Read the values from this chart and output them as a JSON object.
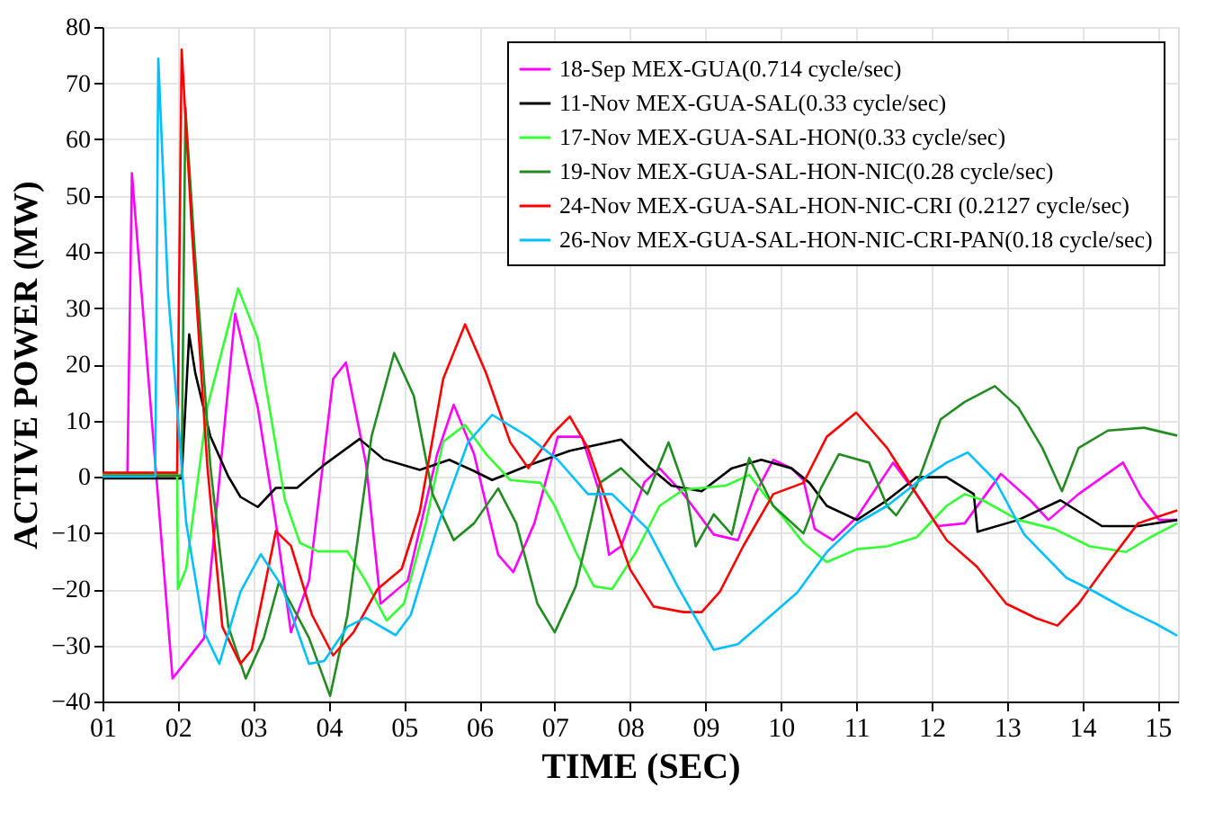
{
  "chart_data": {
    "type": "line",
    "xlabel": "TIME (SEC)",
    "ylabel": "ACTIVE POWER (MW)",
    "xlim": [
      1,
      15.27
    ],
    "ylim": [
      -40,
      80
    ],
    "xticks": [
      {
        "value": 1,
        "label": "01"
      },
      {
        "value": 2,
        "label": "02"
      },
      {
        "value": 3,
        "label": "03"
      },
      {
        "value": 4,
        "label": "04"
      },
      {
        "value": 5,
        "label": "05"
      },
      {
        "value": 6,
        "label": "06"
      },
      {
        "value": 7,
        "label": "07"
      },
      {
        "value": 8,
        "label": "08"
      },
      {
        "value": 9,
        "label": "09"
      },
      {
        "value": 10,
        "label": "10"
      },
      {
        "value": 11,
        "label": "11"
      },
      {
        "value": 12,
        "label": "12"
      },
      {
        "value": 13,
        "label": "13"
      },
      {
        "value": 14,
        "label": "14"
      },
      {
        "value": 15,
        "label": "15"
      }
    ],
    "yticks": [
      -40,
      -30,
      -20,
      -10,
      0,
      10,
      20,
      30,
      40,
      50,
      60,
      70,
      80
    ],
    "grid": true,
    "legend": "top right",
    "marker": "none",
    "line_style": "solid",
    "series": [
      {
        "name": "18-Sep MEX-GUA(0.714 cycle/sec)",
        "color": "#ff00ff",
        "x": [
          1,
          1.33,
          1.39,
          1.93,
          2.35,
          2.76,
          3.06,
          3.3,
          3.5,
          3.74,
          4.06,
          4.23,
          4.5,
          4.69,
          5.05,
          5.44,
          5.66,
          5.93,
          6.25,
          6.45,
          6.73,
          7.04,
          7.36,
          7.6,
          7.72,
          7.88,
          8.19,
          8.39,
          8.71,
          9.11,
          9.43,
          9.66,
          9.9,
          10.14,
          10.3,
          10.45,
          10.69,
          11.01,
          11.49,
          11.8,
          12.08,
          12.44,
          12.92,
          13.31,
          13.55,
          13.95,
          14.54,
          14.78,
          15.02,
          15.26
        ],
        "values": [
          0.5,
          0.5,
          54,
          -35.9,
          -28.7,
          29,
          12.3,
          -8.2,
          -27.7,
          -18.5,
          17.4,
          20.3,
          2,
          -22.6,
          -18.5,
          4,
          12.8,
          4,
          -13.9,
          -17,
          -8.3,
          7.1,
          7.1,
          -3.1,
          -13.9,
          -12.4,
          -1,
          1.5,
          -3.1,
          -10.3,
          -11.3,
          -3.1,
          3,
          1.5,
          -0.6,
          -9.3,
          -11.3,
          -7.2,
          2.5,
          -3.1,
          -8.8,
          -8.3,
          0.5,
          -4.2,
          -7.7,
          -3.1,
          2.5,
          -3.6,
          -7.7,
          -7.7
        ]
      },
      {
        "name": "11-Nov MEX-GUA-SAL(0.33 cycle/sec)",
        "color": "#000000",
        "x": [
          1,
          2.05,
          2.15,
          2.23,
          2.43,
          2.67,
          2.83,
          3.06,
          3.3,
          3.58,
          3.94,
          4.41,
          4.73,
          5.21,
          5.6,
          5.93,
          6.17,
          6.65,
          7.2,
          7.88,
          8.23,
          8.55,
          8.95,
          9.35,
          9.74,
          10.14,
          10.38,
          10.61,
          11.01,
          11.41,
          11.8,
          12.2,
          12.56,
          12.61,
          13.15,
          13.71,
          14.26,
          14.74,
          15.26
        ],
        "values": [
          -0.3,
          -0.3,
          25.3,
          18.5,
          7.2,
          0,
          -3.6,
          -5.4,
          -2,
          -2,
          2.1,
          6.7,
          3.1,
          1.2,
          3,
          1,
          -0.6,
          2,
          4.6,
          6.6,
          2,
          -1.6,
          -2.6,
          1.5,
          3,
          1.5,
          -1.1,
          -5.2,
          -7.7,
          -4.2,
          -0.1,
          -0.1,
          -3.1,
          -9.8,
          -7.7,
          -4.2,
          -8.8,
          -8.8,
          -7.7
        ]
      },
      {
        "name": "17-Nov MEX-GUA-SAL-HON(0.33 cycle/sec)",
        "color": "#33ff33",
        "x": [
          1,
          1.99,
          2.0,
          2.11,
          2.39,
          2.8,
          3.06,
          3.42,
          3.62,
          3.86,
          4.25,
          4.49,
          4.77,
          5.0,
          5.29,
          5.52,
          5.81,
          6.09,
          6.41,
          6.81,
          7.0,
          7.28,
          7.52,
          7.76,
          8.08,
          8.39,
          8.71,
          9.27,
          9.58,
          9.9,
          10.06,
          10.3,
          10.61,
          11.01,
          11.41,
          11.8,
          12.2,
          12.44,
          12.68,
          13.15,
          13.63,
          14.1,
          14.58,
          14.9,
          15.26
        ],
        "values": [
          0.5,
          0.5,
          -20,
          -16.4,
          12.3,
          33.5,
          24.6,
          -4.1,
          -11.8,
          -13.3,
          -13.3,
          -18.5,
          -25.6,
          -22.6,
          -8.2,
          6.2,
          9.2,
          4,
          -0.6,
          -1.1,
          -5.2,
          -13.4,
          -19.5,
          -20,
          -13.4,
          -5.2,
          -2.3,
          -1.6,
          0.3,
          -5.2,
          -7.7,
          -11.8,
          -15.2,
          -12.9,
          -12.4,
          -10.8,
          -5.2,
          -3.1,
          -4.2,
          -7.7,
          -9.3,
          -12.4,
          -13.4,
          -10.8,
          -8.3
        ]
      },
      {
        "name": "19-Nov MEX-GUA-SAL-HON-NIC(0.28 cycle/sec)",
        "color": "#228b22",
        "x": [
          1,
          2.05,
          2.1,
          2.23,
          2.43,
          2.67,
          2.9,
          3.14,
          3.34,
          3.5,
          3.74,
          4.02,
          4.25,
          4.57,
          4.87,
          5.13,
          5.38,
          5.66,
          5.93,
          6.25,
          6.49,
          6.77,
          7.0,
          7.28,
          7.6,
          7.88,
          8.23,
          8.51,
          8.75,
          8.87,
          9.11,
          9.35,
          9.58,
          9.9,
          10.3,
          10.53,
          10.77,
          11.17,
          11.41,
          11.53,
          11.8,
          12.12,
          12.44,
          12.84,
          13.15,
          13.47,
          13.73,
          13.95,
          14.34,
          14.82,
          15.26
        ],
        "values": [
          0.2,
          0.2,
          65.6,
          39,
          2,
          -26.7,
          -35.9,
          -28.7,
          -18.8,
          -22.6,
          -28.7,
          -39,
          -24.6,
          7.2,
          22,
          14.4,
          -3.1,
          -11.3,
          -8.3,
          -2.1,
          -8.3,
          -22.6,
          -27.7,
          -19.5,
          -1.1,
          1.5,
          -3.1,
          6.1,
          -3.1,
          -12.4,
          -6.7,
          -10.3,
          3.3,
          -5.2,
          -10.1,
          -2.1,
          4,
          2.5,
          -5.2,
          -6.9,
          -1.6,
          10.2,
          13.3,
          16.1,
          12.3,
          5.1,
          -2.6,
          5.1,
          8.2,
          8.7,
          7.3
        ]
      },
      {
        "name": "24-Nov MEX-GUA-SAL-HON-NIC-CRI (0.2127 cycle/sec)",
        "color": "#ff0000",
        "x": [
          1,
          1.99,
          2.05,
          2.19,
          2.39,
          2.59,
          2.83,
          2.98,
          3.3,
          3.5,
          3.78,
          4.06,
          4.33,
          4.65,
          4.97,
          5.21,
          5.52,
          5.81,
          6.09,
          6.41,
          6.65,
          6.97,
          7.2,
          7.44,
          7.68,
          8.0,
          8.31,
          8.71,
          8.95,
          9.19,
          9.5,
          9.9,
          10.3,
          10.61,
          11.0,
          11.41,
          11.8,
          12.2,
          12.6,
          12.99,
          13.39,
          13.67,
          13.95,
          14.34,
          14.74,
          15.26
        ],
        "values": [
          0.7,
          0.7,
          76,
          43,
          2,
          -26.7,
          -33.3,
          -30.8,
          -9.7,
          -12.3,
          -24.6,
          -31.8,
          -27.7,
          -20,
          -16.4,
          -6.2,
          17.4,
          27.1,
          18.4,
          6.1,
          1.5,
          7.6,
          10.7,
          5.1,
          -4.2,
          -16.5,
          -23.1,
          -24.1,
          -24.1,
          -20.5,
          -12.4,
          -3.1,
          -1.1,
          7.1,
          11.4,
          5.1,
          -3.1,
          -11.3,
          -16,
          -22.6,
          -25.2,
          -26.5,
          -22.6,
          -15.4,
          -8.3,
          -6
        ]
      },
      {
        "name": "26-Nov MEX-GUA-SAL-HON-NIC-CRI-PAN(0.18 cycle/sec)",
        "color": "#00bfff",
        "x": [
          1,
          1.7,
          1.74,
          1.87,
          2.11,
          2.35,
          2.55,
          2.83,
          3.1,
          3.38,
          3.74,
          3.94,
          4.25,
          4.49,
          4.89,
          5.09,
          5.46,
          5.85,
          6.17,
          6.65,
          7.04,
          7.44,
          7.76,
          8.23,
          8.63,
          9.11,
          9.43,
          9.74,
          10.22,
          10.61,
          11.01,
          11.41,
          11.8,
          12.2,
          12.48,
          12.84,
          13.23,
          13.79,
          14.18,
          14.58,
          14.98,
          15.26
        ],
        "values": [
          0,
          0,
          74.4,
          32.8,
          -8.2,
          -27.7,
          -33.3,
          -20.5,
          -13.8,
          -19.5,
          -33.3,
          -32.8,
          -26.7,
          -25.1,
          -28.2,
          -24.6,
          -8.3,
          6.1,
          11,
          7.1,
          3,
          -3.1,
          -3.1,
          -9.3,
          -19.5,
          -30.8,
          -29.8,
          -26.2,
          -20.6,
          -13.4,
          -8.3,
          -5.2,
          -1.1,
          2.5,
          4.3,
          -0.6,
          -10.3,
          -18,
          -20.6,
          -23.6,
          -26.2,
          -28.3
        ]
      }
    ]
  }
}
